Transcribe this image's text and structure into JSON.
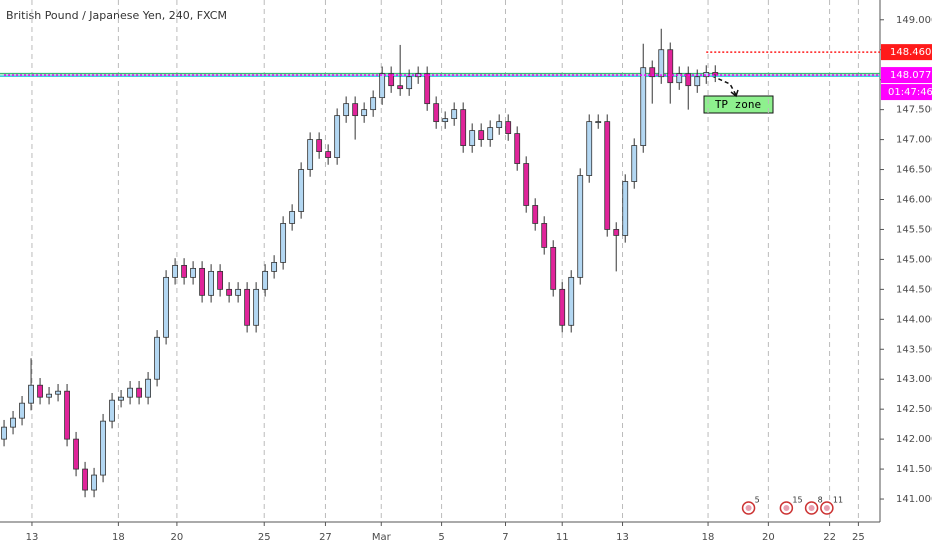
{
  "chart_data": {
    "type": "candlestick",
    "title": "British Pound / Japanese Yen, 240, FXCM",
    "x": [
      0,
      1,
      2,
      3,
      4,
      5,
      6,
      7,
      8,
      9,
      10,
      11,
      12,
      13,
      14,
      15,
      16,
      17,
      18,
      19,
      20,
      21,
      22,
      23,
      24,
      25,
      26,
      27,
      28,
      29,
      30,
      31,
      32,
      33,
      34,
      35,
      36,
      37,
      38,
      39,
      40,
      41,
      42,
      43,
      44,
      45,
      46,
      47,
      48,
      49,
      50,
      51,
      52,
      53,
      54,
      55,
      56,
      57,
      58,
      59,
      60,
      61,
      62,
      63,
      64,
      65,
      66,
      67,
      68,
      69,
      70,
      71,
      72,
      73,
      74,
      75,
      76,
      77,
      78,
      79
    ],
    "open": [
      142.0,
      142.2,
      142.35,
      142.6,
      142.9,
      142.7,
      142.75,
      142.8,
      142.0,
      141.5,
      141.15,
      141.4,
      142.3,
      142.65,
      142.7,
      142.85,
      142.7,
      143.0,
      143.7,
      144.7,
      144.9,
      144.7,
      144.85,
      144.4,
      144.8,
      144.5,
      144.4,
      144.5,
      143.9,
      144.5,
      144.8,
      144.95,
      145.6,
      145.8,
      146.5,
      147.0,
      146.8,
      146.7,
      147.4,
      147.6,
      147.4,
      147.5,
      147.7,
      148.1,
      147.9,
      147.85,
      148.05,
      148.1,
      147.6,
      147.3,
      147.35,
      147.5,
      146.9,
      147.15,
      147.0,
      147.2,
      147.3,
      147.1,
      146.6,
      145.9,
      145.6,
      145.2,
      144.5,
      143.9,
      144.7,
      146.4,
      147.3,
      147.3,
      145.5,
      145.4,
      146.3,
      146.9,
      148.2,
      148.05,
      148.5,
      147.95,
      148.1,
      147.9,
      148.05,
      148.12
    ],
    "high": [
      142.32,
      142.47,
      142.72,
      143.35,
      143.02,
      142.87,
      142.92,
      142.92,
      142.12,
      141.62,
      141.52,
      142.42,
      142.77,
      142.82,
      142.97,
      142.97,
      143.12,
      143.82,
      144.82,
      145.02,
      145.02,
      144.97,
      144.97,
      144.92,
      144.92,
      144.62,
      144.62,
      144.62,
      144.62,
      144.92,
      145.07,
      145.72,
      145.92,
      146.62,
      147.12,
      147.12,
      146.92,
      147.52,
      147.72,
      147.72,
      147.62,
      147.82,
      148.22,
      148.22,
      148.58,
      148.17,
      148.22,
      148.22,
      147.72,
      147.47,
      147.62,
      147.62,
      147.27,
      147.27,
      147.32,
      147.42,
      147.42,
      147.22,
      146.72,
      146.02,
      145.72,
      145.32,
      144.62,
      144.82,
      146.52,
      147.42,
      147.42,
      147.42,
      145.62,
      146.42,
      147.02,
      148.6,
      148.32,
      148.85,
      148.62,
      148.22,
      148.22,
      148.17,
      148.24,
      148.24
    ],
    "low": [
      141.88,
      142.08,
      142.23,
      142.48,
      142.58,
      142.58,
      142.63,
      141.88,
      141.38,
      141.03,
      141.03,
      141.28,
      142.18,
      142.53,
      142.58,
      142.58,
      142.58,
      142.88,
      143.58,
      144.58,
      144.58,
      144.58,
      144.28,
      144.28,
      144.38,
      144.28,
      144.28,
      143.78,
      143.78,
      144.38,
      144.68,
      144.83,
      145.48,
      145.68,
      146.38,
      146.68,
      146.58,
      146.58,
      147.28,
      147.0,
      147.28,
      147.38,
      147.58,
      147.78,
      147.73,
      147.73,
      147.93,
      147.48,
      147.18,
      147.18,
      147.23,
      146.78,
      146.78,
      146.88,
      146.88,
      147.08,
      146.98,
      146.48,
      145.78,
      145.48,
      145.08,
      144.38,
      143.78,
      143.78,
      144.58,
      146.28,
      147.18,
      145.38,
      144.8,
      145.28,
      146.18,
      146.78,
      147.6,
      147.93,
      147.6,
      147.83,
      147.5,
      147.78,
      147.93,
      147.96
    ],
    "close": [
      142.2,
      142.35,
      142.6,
      142.9,
      142.7,
      142.75,
      142.8,
      142.0,
      141.5,
      141.15,
      141.4,
      142.3,
      142.65,
      142.7,
      142.85,
      142.7,
      143.0,
      143.7,
      144.7,
      144.9,
      144.7,
      144.85,
      144.4,
      144.8,
      144.5,
      144.4,
      144.5,
      143.9,
      144.5,
      144.8,
      144.95,
      145.6,
      145.8,
      146.5,
      147.0,
      146.8,
      146.7,
      147.4,
      147.6,
      147.4,
      147.5,
      147.7,
      148.1,
      147.9,
      147.85,
      148.05,
      148.1,
      147.6,
      147.3,
      147.35,
      147.5,
      146.9,
      147.15,
      147.0,
      147.2,
      147.3,
      147.1,
      146.6,
      145.9,
      145.6,
      145.2,
      144.5,
      143.9,
      144.7,
      146.4,
      147.3,
      147.3,
      145.5,
      145.4,
      146.3,
      146.9,
      148.2,
      148.05,
      148.5,
      147.95,
      148.1,
      147.9,
      148.05,
      148.12,
      148.08
    ],
    "up_color": "#b3d7f2",
    "down_color": "#e0249a",
    "xlim": [
      -0.45,
      97.3
    ],
    "ylim": [
      140.65,
      149.33
    ],
    "grid": "vertical",
    "xticks": [
      {
        "value": 3.1,
        "label": "13"
      },
      {
        "value": 12.7,
        "label": "18"
      },
      {
        "value": 19.2,
        "label": "20"
      },
      {
        "value": 28.9,
        "label": "25"
      },
      {
        "value": 35.7,
        "label": "27"
      },
      {
        "value": 41.9,
        "label": "Mar"
      },
      {
        "value": 48.6,
        "label": "5"
      },
      {
        "value": 55.7,
        "label": "7"
      },
      {
        "value": 62,
        "label": "11"
      },
      {
        "value": 68.7,
        "label": "13"
      },
      {
        "value": 78.2,
        "label": "18"
      },
      {
        "value": 84.9,
        "label": "20"
      },
      {
        "value": 91.7,
        "label": "22"
      },
      {
        "value": 94.9,
        "label": "25"
      }
    ],
    "yticks": [
      {
        "value": 141,
        "label": "141.000"
      },
      {
        "value": 141.5,
        "label": "141.500"
      },
      {
        "value": 142,
        "label": "142.000"
      },
      {
        "value": 142.5,
        "label": "142.500"
      },
      {
        "value": 143,
        "label": "143.000"
      },
      {
        "value": 143.5,
        "label": "143.500"
      },
      {
        "value": 144,
        "label": "144.000"
      },
      {
        "value": 144.5,
        "label": "144.500"
      },
      {
        "value": 145,
        "label": "145.000"
      },
      {
        "value": 145.5,
        "label": "145.500"
      },
      {
        "value": 146,
        "label": "146.000"
      },
      {
        "value": 146.5,
        "label": "146.500"
      },
      {
        "value": 147,
        "label": "147.000"
      },
      {
        "value": 147.5,
        "label": "147.500"
      },
      {
        "value": 148,
        "label": "148.000"
      },
      {
        "value": 148.5,
        "label": "148.500"
      },
      {
        "value": 149,
        "label": "149.000"
      }
    ],
    "horizontal_lines": [
      {
        "value": 148.1,
        "color": "#3cb878"
      },
      {
        "value": 148.06,
        "color": "#2ec4d6"
      }
    ],
    "price_tags": [
      {
        "value": 148.46,
        "label": "148.460",
        "color": "#ff1a1a",
        "from_x": 78
      },
      {
        "value": 148.077,
        "label": "148.077",
        "color": "#ff00ff",
        "from_x": 0
      }
    ],
    "countdown": "01:47:46",
    "annotation": "TP zone",
    "events": [
      {
        "x": 82.7,
        "label": "5"
      },
      {
        "x": 86.9,
        "label": "15"
      },
      {
        "x": 89.7,
        "label": "8"
      },
      {
        "x": 91.4,
        "label": "11"
      }
    ]
  }
}
